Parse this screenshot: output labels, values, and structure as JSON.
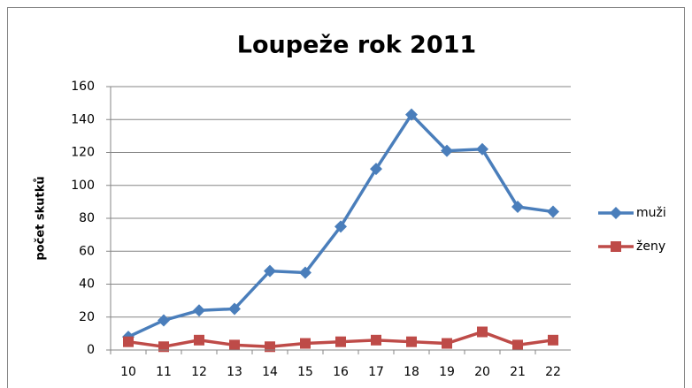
{
  "chart_data": {
    "type": "line",
    "title": "Loupeže rok 2011",
    "y_label": "počet skutků",
    "categories": [
      "10",
      "11",
      "12",
      "13",
      "14",
      "15",
      "16",
      "17",
      "18",
      "19",
      "20",
      "21",
      "22"
    ],
    "series": [
      {
        "name": "muži",
        "color": "#4a7ebb",
        "marker": "diamond",
        "values": [
          8,
          18,
          24,
          25,
          48,
          47,
          75,
          110,
          143,
          121,
          122,
          87,
          84
        ]
      },
      {
        "name": "ženy",
        "color": "#be4b48",
        "marker": "square",
        "values": [
          5,
          2,
          6,
          3,
          2,
          4,
          5,
          6,
          5,
          4,
          11,
          3,
          6
        ]
      }
    ],
    "ylim": [
      0,
      160
    ],
    "yticks": [
      0,
      20,
      40,
      60,
      80,
      100,
      120,
      140,
      160
    ],
    "grid": true,
    "legend": "right"
  }
}
